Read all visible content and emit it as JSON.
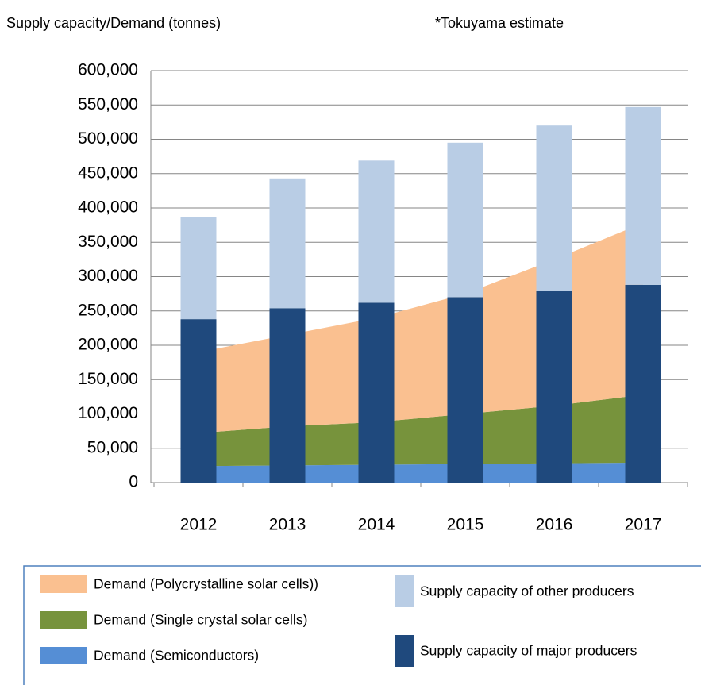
{
  "chart_data": {
    "type": "bar",
    "title": "Supply capacity/Demand (tonnes)",
    "annotation": "*Tokuyama estimate",
    "categories": [
      "2012",
      "2013",
      "2014",
      "2015",
      "2016",
      "2017"
    ],
    "ylim": [
      0,
      600000
    ],
    "yticks": [
      0,
      {
        "value": 50000,
        "label": "50,000"
      },
      {
        "value": 100000,
        "label": "100,000"
      },
      {
        "value": 150000,
        "label": "150,000"
      },
      {
        "value": 200000,
        "label": "200,000"
      },
      {
        "value": 250000,
        "label": "250,000"
      },
      {
        "value": 300000,
        "label": "300,000"
      },
      {
        "value": 350000,
        "label": "350,000"
      },
      {
        "value": 400000,
        "label": "400,000"
      },
      {
        "value": 450000,
        "label": "450,000"
      },
      {
        "value": 500000,
        "label": "500,000"
      },
      {
        "value": 550000,
        "label": "550,000"
      },
      {
        "value": 600000,
        "label": "600,000"
      }
    ],
    "grid": true,
    "series": [
      {
        "name": "Demand (Semiconductors)",
        "type": "area",
        "color": "#558ed5",
        "values": [
          24000,
          25000,
          26000,
          27000,
          28000,
          29000
        ]
      },
      {
        "name": "Demand (Single crystal solar cells)",
        "type": "area",
        "color": "#77933c",
        "values": [
          48000,
          57000,
          62000,
          73000,
          84000,
          99000
        ]
      },
      {
        "name": "Demand (Polycrystalline solar cells))",
        "type": "area",
        "color": "#fac090",
        "values": [
          118000,
          133000,
          152000,
          175000,
          213000,
          250000
        ]
      },
      {
        "name": "Supply capacity of major producers",
        "type": "bar",
        "color": "#1f497d",
        "values": [
          238000,
          254000,
          262000,
          270000,
          279000,
          288000
        ]
      },
      {
        "name": "Supply capacity of other producers",
        "type": "bar",
        "color": "#b9cde5",
        "values": [
          149000,
          189000,
          207000,
          225000,
          241000,
          259000
        ]
      }
    ]
  }
}
